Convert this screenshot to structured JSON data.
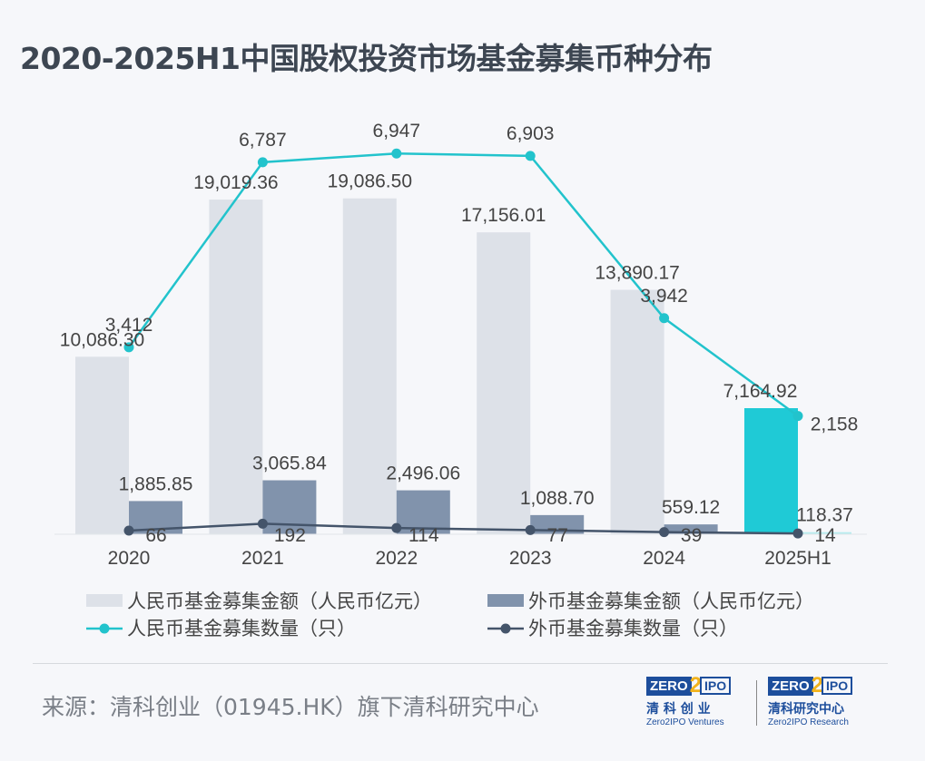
{
  "title": "2020-2025H1中国股权投资市场基金募集币种分布",
  "source": "来源：清科创业（01945.HK）旗下清科研究中心",
  "logos": [
    {
      "mark": "ZERO2IPO",
      "cn": "清 科 创 业",
      "en": "Zero2IPO Ventures"
    },
    {
      "mark": "ZERO2IPO",
      "cn": "清科研究中心",
      "en": "Zero2IPO Research"
    }
  ],
  "colors": {
    "rmb_bar": "#dde1e8",
    "rmb_bar_highlight": "#1fcad6",
    "fx_bar": "#8193ac",
    "rmb_line": "#22c3cc",
    "fx_line": "#44546a"
  },
  "chart_data": {
    "type": "bar+line",
    "categories": [
      "2020",
      "2021",
      "2022",
      "2023",
      "2024",
      "2025H1"
    ],
    "series": [
      {
        "name": "人民币基金募集金额（人民币亿元）",
        "type": "bar",
        "axis": "left",
        "values": [
          10086.3,
          19019.36,
          19086.5,
          17156.01,
          13890.17,
          7164.92
        ],
        "labels": [
          "10,086.30",
          "19,019.36",
          "19,086.50",
          "17,156.01",
          "13,890.17",
          "7,164.92"
        ]
      },
      {
        "name": "外币基金募集金额（人民币亿元）",
        "type": "bar",
        "axis": "left",
        "values": [
          1885.85,
          3065.84,
          2496.06,
          1088.7,
          559.12,
          118.37
        ],
        "labels": [
          "1,885.85",
          "3,065.84",
          "2,496.06",
          "1,088.70",
          "559.12",
          "118.37"
        ]
      },
      {
        "name": "人民币基金募集数量（只）",
        "type": "line",
        "axis": "right",
        "values": [
          3412,
          6787,
          6947,
          6903,
          3942,
          2158
        ],
        "labels": [
          "3,412",
          "6,787",
          "6,947",
          "6,903",
          "3,942",
          "2,158"
        ]
      },
      {
        "name": "外币基金募集数量（只）",
        "type": "line",
        "axis": "right",
        "values": [
          66,
          192,
          114,
          77,
          39,
          14
        ],
        "labels": [
          "66",
          "192",
          "114",
          "77",
          "39",
          "14"
        ]
      }
    ],
    "left_ylim": [
      0,
      20000
    ],
    "right_ylim": [
      0,
      7000
    ],
    "axes_visible": false,
    "grid": false,
    "legend_position": "bottom"
  }
}
